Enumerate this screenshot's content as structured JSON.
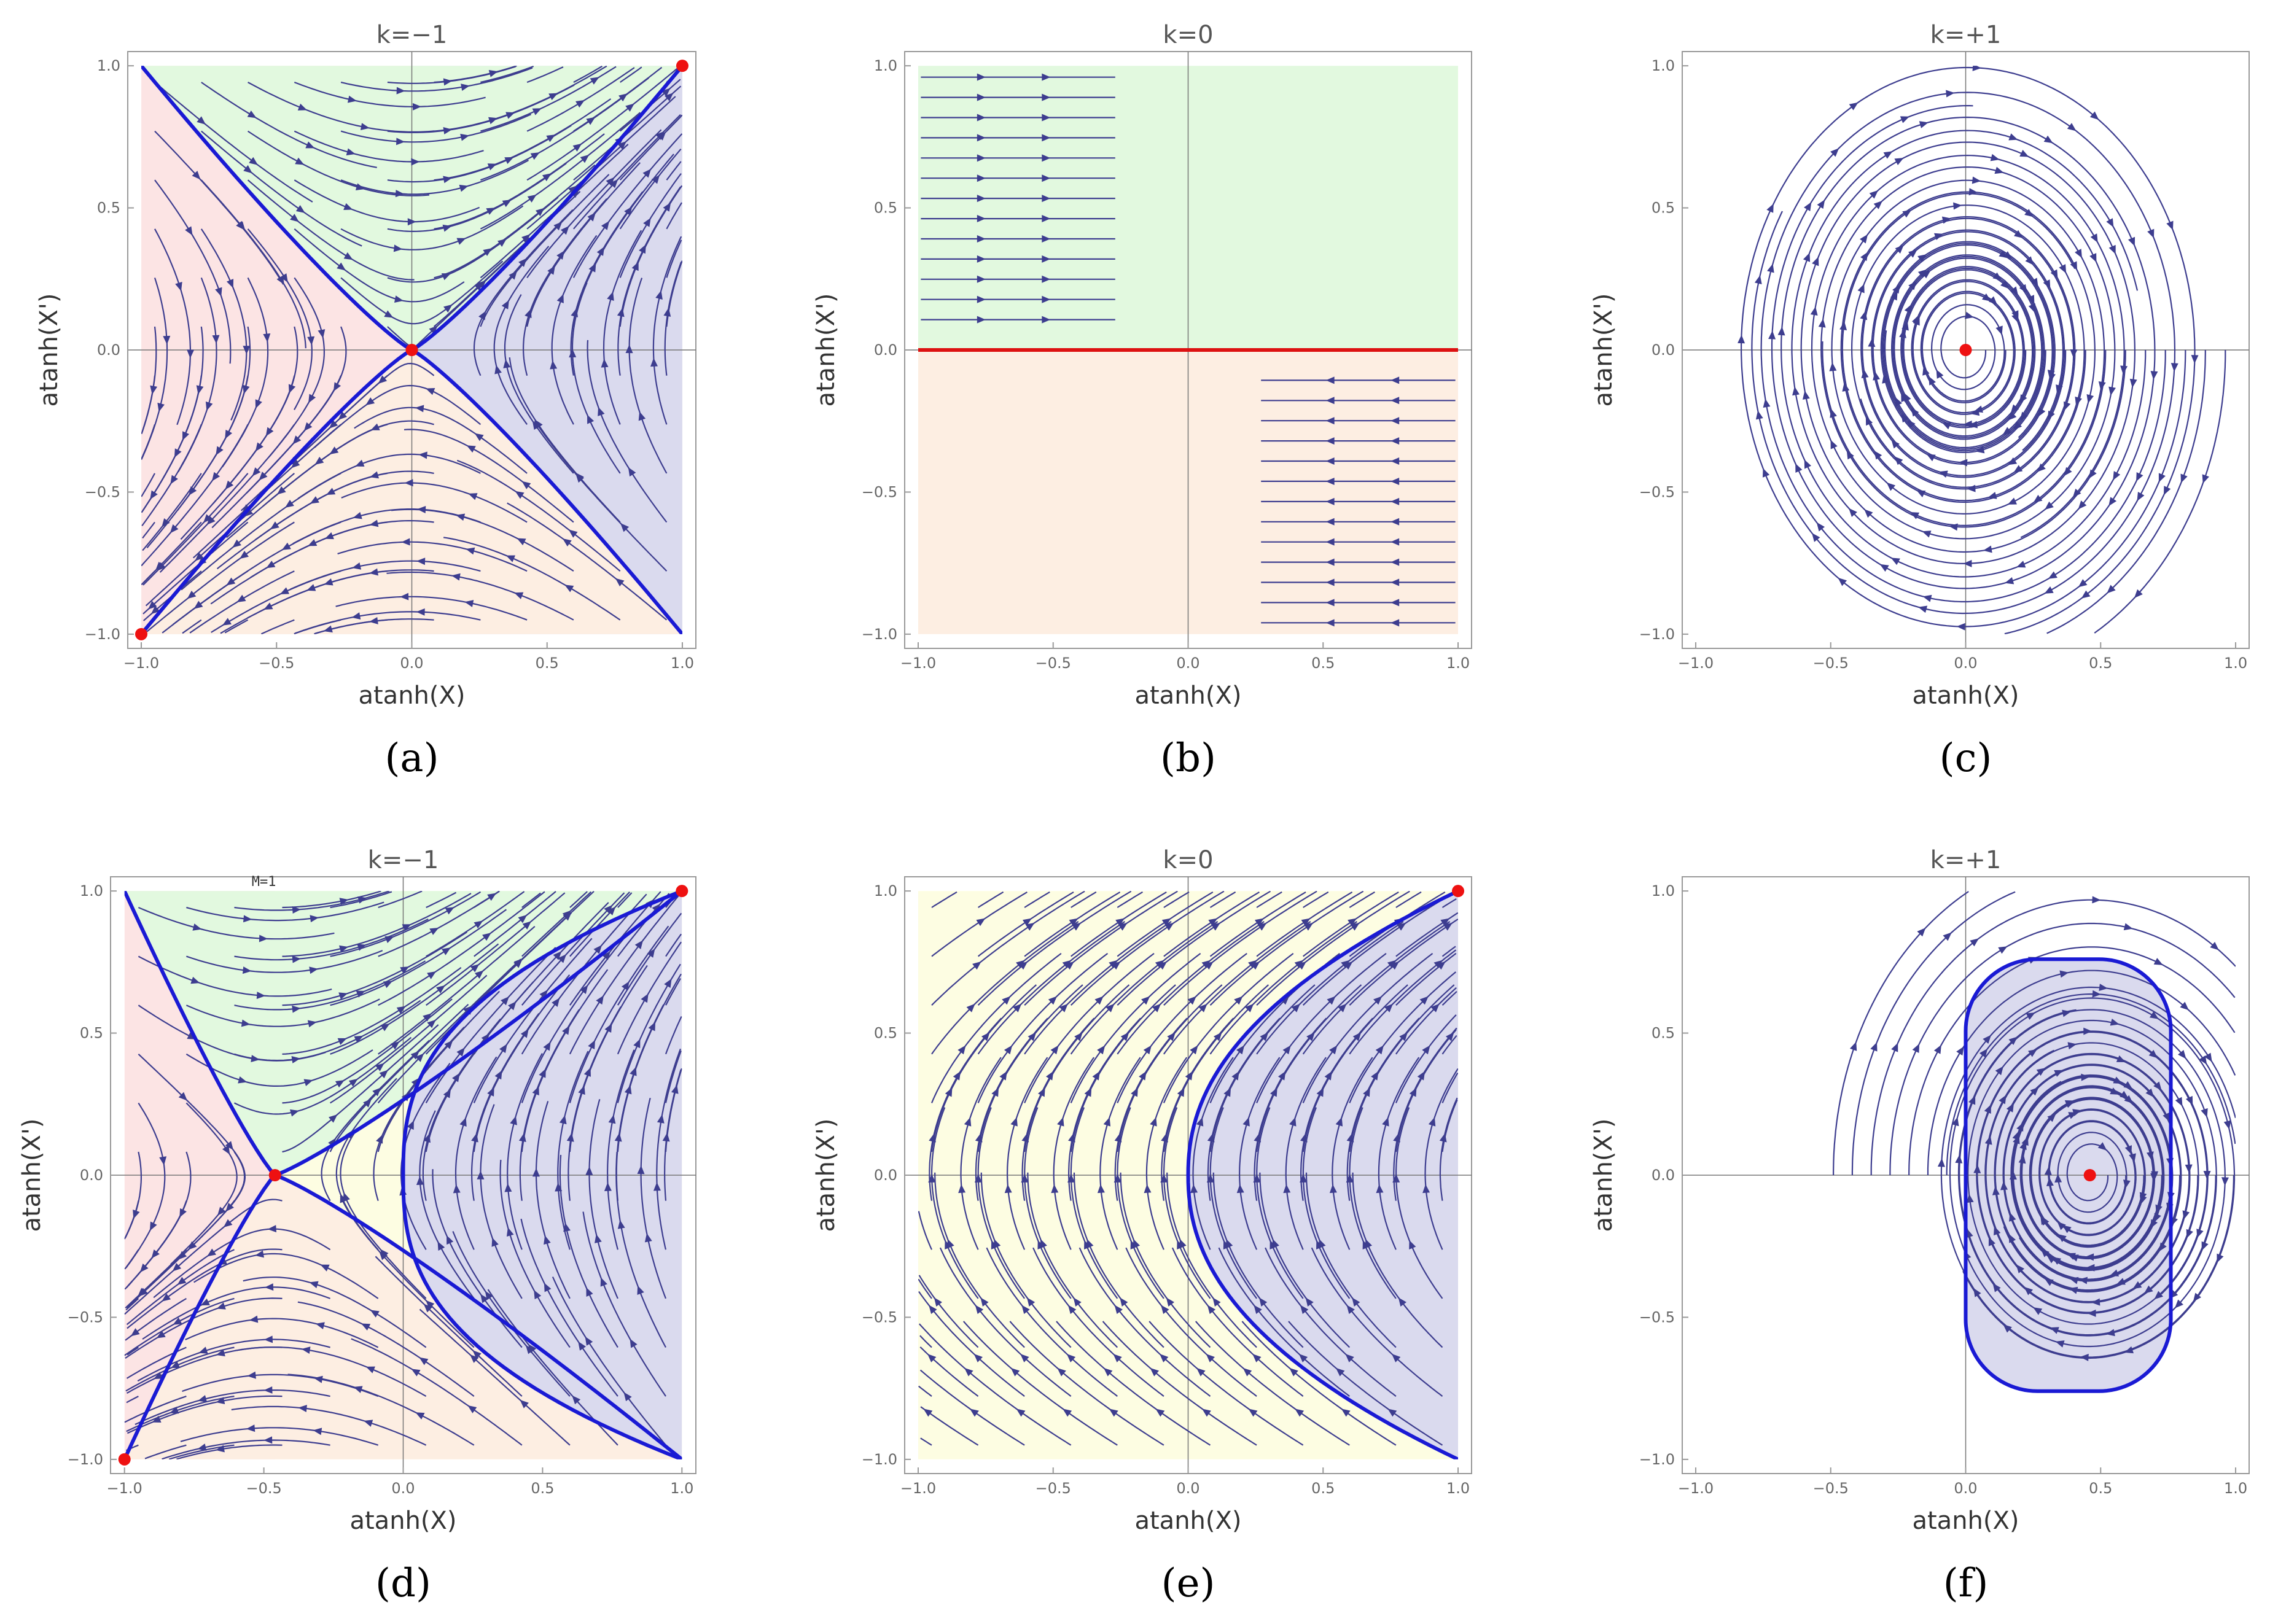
{
  "figure": {
    "colors": {
      "stream": "#3d3d8f",
      "separatrix": "#1a1ad4",
      "fixed_point": "#ee1111",
      "k0_line": "#dd1111",
      "frame": "#999999",
      "axis": "#777777",
      "region_pink": "#fce4e4",
      "region_green": "#e2f9df",
      "region_peach": "#fdeee2",
      "region_blue": "#dadaee",
      "region_yellow": "#fdfde2"
    }
  },
  "chart_data": [
    {
      "id": "a",
      "type": "streamplot",
      "title": "k=−1",
      "caption": "(a)",
      "xlabel": "atanh(X)",
      "ylabel": "atanh(X')",
      "xlim": [
        -1.0,
        1.0
      ],
      "ylim": [
        -1.0,
        1.0
      ],
      "xticks": [
        "−1.0",
        "−0.5",
        "0.0",
        "0.5",
        "1.0"
      ],
      "yticks": [
        "−1.0",
        "−0.5",
        "0.0",
        "0.5",
        "1.0"
      ],
      "fixed_points": [
        {
          "x": -1,
          "y": -1
        },
        {
          "x": 0,
          "y": 0
        },
        {
          "x": 1,
          "y": 1
        }
      ],
      "field": "saddle",
      "center": 0,
      "regions": "four",
      "annotation": ""
    },
    {
      "id": "b",
      "type": "streamplot",
      "title": "k=0",
      "caption": "(b)",
      "xlabel": "atanh(X)",
      "ylabel": "atanh(X')",
      "xlim": [
        -1.0,
        1.0
      ],
      "ylim": [
        -1.0,
        1.0
      ],
      "xticks": [
        "−1.0",
        "−0.5",
        "0.0",
        "0.5",
        "1.0"
      ],
      "yticks": [
        "−1.0",
        "−0.5",
        "0.0",
        "0.5",
        "1.0"
      ],
      "fixed_points": [],
      "field": "shear",
      "center": 0,
      "regions": "two",
      "annotation": ""
    },
    {
      "id": "c",
      "type": "streamplot",
      "title": "k=+1",
      "caption": "(c)",
      "xlabel": "atanh(X)",
      "ylabel": "atanh(X')",
      "xlim": [
        -1.0,
        1.0
      ],
      "ylim": [
        -1.0,
        1.0
      ],
      "xticks": [
        "−1.0",
        "−0.5",
        "0.0",
        "0.5",
        "1.0"
      ],
      "yticks": [
        "−1.0",
        "−0.5",
        "0.0",
        "0.5",
        "1.0"
      ],
      "fixed_points": [
        {
          "x": 0,
          "y": 0
        }
      ],
      "field": "center",
      "center": 0,
      "regions": "none",
      "annotation": ""
    },
    {
      "id": "d",
      "type": "streamplot",
      "title": "k=−1",
      "caption": "(d)",
      "xlabel": "atanh(X)",
      "ylabel": "atanh(X')",
      "xlim": [
        -1.0,
        1.0
      ],
      "ylim": [
        -1.0,
        1.0
      ],
      "xticks": [
        "−1.0",
        "−0.5",
        "0.0",
        "0.5",
        "1.0"
      ],
      "yticks": [
        "−1.0",
        "−0.5",
        "0.0",
        "0.5",
        "1.0"
      ],
      "fixed_points": [
        {
          "x": -1,
          "y": -1
        },
        {
          "x": -0.46,
          "y": 0
        },
        {
          "x": 1,
          "y": 1
        }
      ],
      "field": "saddle_shifted",
      "center": -0.46,
      "regions": "five",
      "annotation": "M=1"
    },
    {
      "id": "e",
      "type": "streamplot",
      "title": "k=0",
      "caption": "(e)",
      "xlabel": "atanh(X)",
      "ylabel": "atanh(X')",
      "xlim": [
        -1.0,
        1.0
      ],
      "ylim": [
        -1.0,
        1.0
      ],
      "xticks": [
        "−1.0",
        "−0.5",
        "0.0",
        "0.5",
        "1.0"
      ],
      "yticks": [
        "−1.0",
        "−0.5",
        "0.0",
        "0.5",
        "1.0"
      ],
      "fixed_points": [
        {
          "x": 1,
          "y": 1
        }
      ],
      "field": "turn",
      "center": 0,
      "regions": "yellow_blue",
      "annotation": ""
    },
    {
      "id": "f",
      "type": "streamplot",
      "title": "k=+1",
      "caption": "(f)",
      "xlabel": "atanh(X)",
      "ylabel": "atanh(X')",
      "xlim": [
        -1.0,
        1.0
      ],
      "ylim": [
        -1.0,
        1.0
      ],
      "xticks": [
        "−1.0",
        "−0.5",
        "0.0",
        "0.5",
        "1.0"
      ],
      "yticks": [
        "−1.0",
        "−0.5",
        "0.0",
        "0.5",
        "1.0"
      ],
      "fixed_points": [
        {
          "x": 0.46,
          "y": 0
        }
      ],
      "field": "center_shifted",
      "center": 0.46,
      "regions": "oval",
      "annotation": ""
    }
  ]
}
